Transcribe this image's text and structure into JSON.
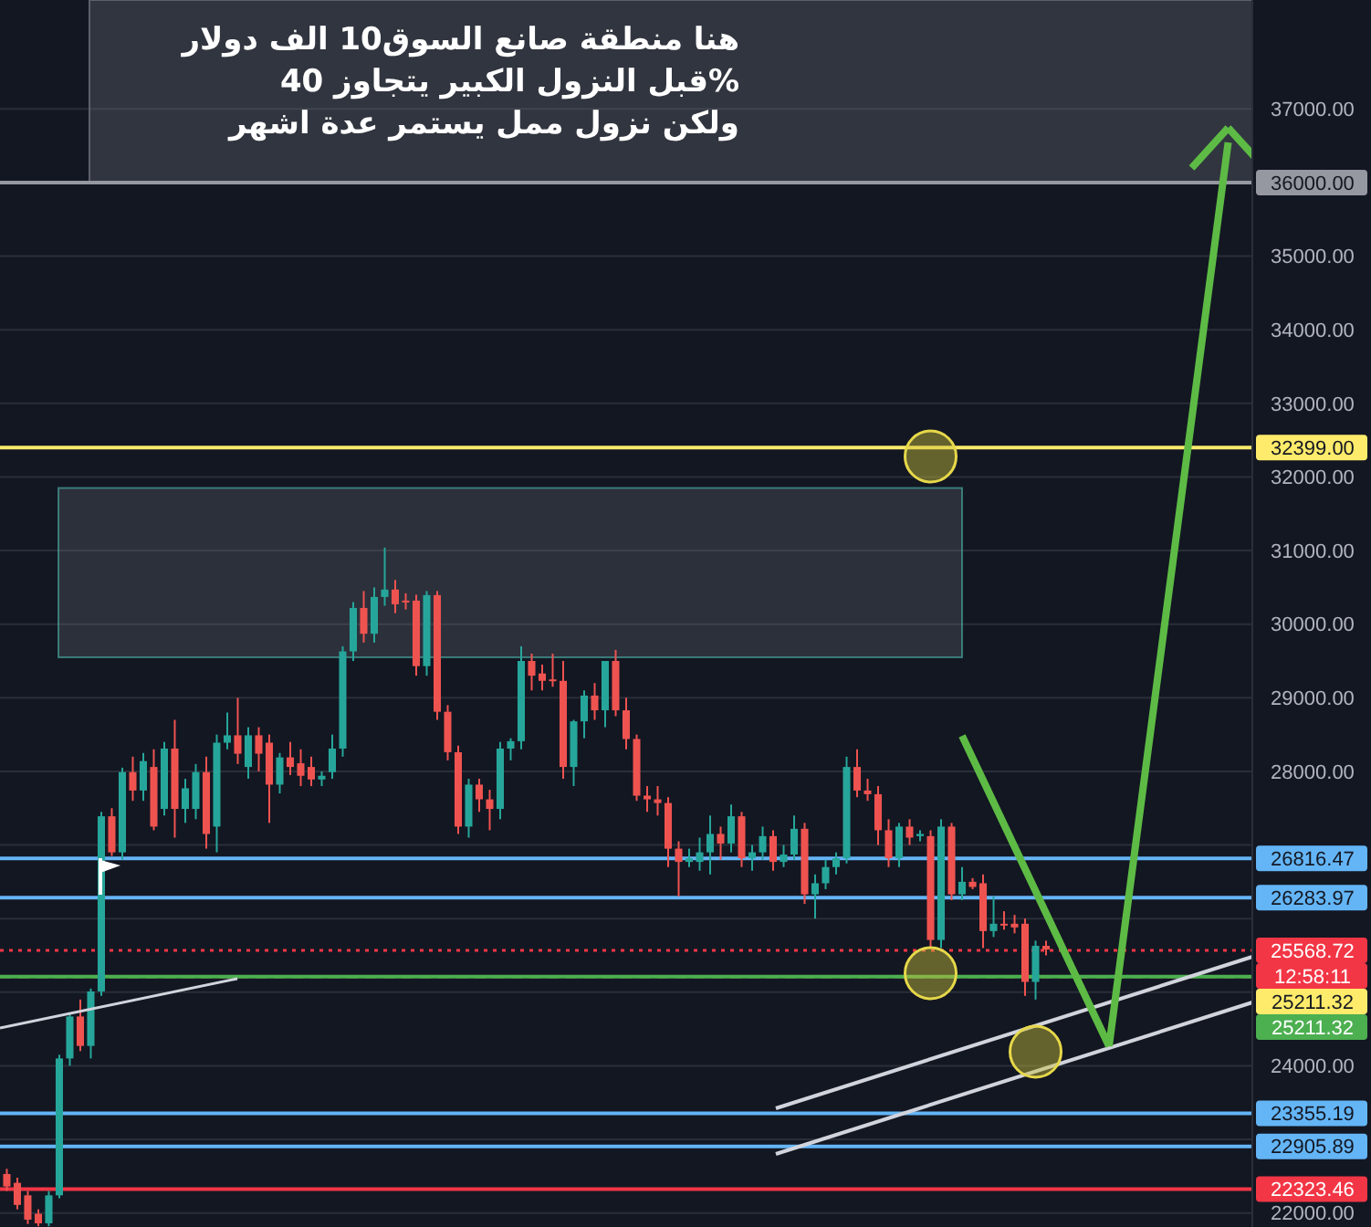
{
  "chart_data": {
    "type": "candlestick",
    "categories": [
      null,
      null,
      null,
      null,
      null,
      null,
      null,
      null,
      null,
      null,
      null,
      null,
      null,
      null,
      null,
      null,
      null,
      null,
      null,
      null,
      null,
      null,
      null,
      null,
      null,
      null,
      null,
      null,
      null,
      null,
      null,
      null,
      null,
      null,
      null,
      null,
      null,
      null,
      null,
      null,
      null,
      null,
      null,
      null,
      null,
      null,
      null,
      null,
      null,
      null,
      null,
      null,
      null,
      null,
      null,
      null,
      null,
      null,
      null,
      null,
      null,
      null,
      null,
      null,
      null,
      null,
      null,
      null,
      null,
      null,
      null,
      null,
      null,
      null,
      null,
      null,
      null,
      null,
      null,
      null,
      null,
      null,
      null,
      null,
      null,
      null,
      null,
      null,
      null,
      null,
      null,
      null,
      null,
      null,
      null,
      null,
      null,
      null,
      null,
      null,
      null,
      null,
      null,
      null,
      null,
      null,
      null,
      null,
      null,
      null,
      null,
      null,
      null,
      null,
      null,
      null,
      null,
      null,
      null
    ],
    "ohlc": [
      [
        22530,
        22600,
        22300,
        22360
      ],
      [
        22410,
        22480,
        22050,
        22110
      ],
      [
        22240,
        22300,
        21850,
        21910
      ],
      [
        21990,
        22050,
        21820,
        21860
      ],
      [
        21860,
        22300,
        21820,
        22240
      ],
      [
        22240,
        24150,
        22200,
        24100
      ],
      [
        24100,
        24700,
        24000,
        24670
      ],
      [
        24670,
        24900,
        24200,
        24270
      ],
      [
        24270,
        25050,
        24100,
        25010
      ],
      [
        25010,
        27450,
        24950,
        27390
      ],
      [
        27390,
        27500,
        26850,
        26900
      ],
      [
        26900,
        28050,
        26800,
        27990
      ],
      [
        27990,
        28200,
        27600,
        27740
      ],
      [
        27740,
        28250,
        27600,
        28140
      ],
      [
        28060,
        28300,
        27200,
        27250
      ],
      [
        27490,
        28400,
        27400,
        28310
      ],
      [
        28310,
        28700,
        27100,
        27490
      ],
      [
        27490,
        27900,
        27300,
        27770
      ],
      [
        27490,
        28100,
        27350,
        27990
      ],
      [
        27990,
        28200,
        26950,
        27150
      ],
      [
        27250,
        28500,
        26900,
        28390
      ],
      [
        28390,
        28800,
        28300,
        28490
      ],
      [
        28490,
        29000,
        28100,
        28240
      ],
      [
        28060,
        28600,
        27900,
        28490
      ],
      [
        28490,
        28600,
        28000,
        28240
      ],
      [
        28390,
        28500,
        27300,
        27820
      ],
      [
        27820,
        28250,
        27700,
        28190
      ],
      [
        28190,
        28400,
        27950,
        28060
      ],
      [
        28110,
        28300,
        27800,
        27940
      ],
      [
        28060,
        28200,
        27800,
        27890
      ],
      [
        27890,
        28000,
        27800,
        27940
      ],
      [
        27990,
        28500,
        27900,
        28310
      ],
      [
        28310,
        29700,
        28200,
        29630
      ],
      [
        29630,
        30300,
        29500,
        30220
      ],
      [
        30220,
        30450,
        29750,
        29870
      ],
      [
        29870,
        30500,
        29750,
        30370
      ],
      [
        30370,
        31040,
        30250,
        30470
      ],
      [
        30470,
        30600,
        30150,
        30270
      ],
      [
        30320,
        30420,
        30200,
        30300
      ],
      [
        30320,
        30400,
        29300,
        29430
      ],
      [
        29430,
        30450,
        29300,
        30395
      ],
      [
        30395,
        30450,
        28700,
        28810
      ],
      [
        28810,
        28900,
        28150,
        28260
      ],
      [
        28260,
        28350,
        27150,
        27250
      ],
      [
        27250,
        27900,
        27100,
        27820
      ],
      [
        27820,
        27900,
        27450,
        27620
      ],
      [
        27620,
        27750,
        27200,
        27490
      ],
      [
        27490,
        28400,
        27350,
        28310
      ],
      [
        28310,
        28450,
        28150,
        28410
      ],
      [
        28410,
        29700,
        28300,
        29500
      ],
      [
        29500,
        29600,
        29100,
        29300
      ],
      [
        29330,
        29450,
        29100,
        29230
      ],
      [
        29250,
        29600,
        29150,
        29230
      ],
      [
        29230,
        29500,
        27900,
        28060
      ],
      [
        28060,
        28700,
        27800,
        28680
      ],
      [
        28680,
        29100,
        28450,
        29030
      ],
      [
        29030,
        29200,
        28700,
        28830
      ],
      [
        28830,
        29500,
        28600,
        29500
      ],
      [
        29500,
        29650,
        28750,
        28830
      ],
      [
        28830,
        29000,
        28300,
        28440
      ],
      [
        28440,
        28500,
        27600,
        27670
      ],
      [
        27670,
        27800,
        27450,
        27620
      ],
      [
        27620,
        27800,
        27400,
        27570
      ],
      [
        27570,
        27650,
        26700,
        26950
      ],
      [
        26950,
        27050,
        26300,
        26770
      ],
      [
        26770,
        26950,
        26700,
        26820
      ],
      [
        26770,
        27100,
        26650,
        26900
      ],
      [
        26900,
        27400,
        26600,
        27150
      ],
      [
        27150,
        27250,
        26800,
        27020
      ],
      [
        27020,
        27550,
        26900,
        27390
      ],
      [
        27390,
        27450,
        26700,
        26820
      ],
      [
        26820,
        27000,
        26650,
        26900
      ],
      [
        26900,
        27250,
        26800,
        27120
      ],
      [
        27120,
        27200,
        26650,
        26770
      ],
      [
        26770,
        27000,
        26700,
        26870
      ],
      [
        26870,
        27400,
        26800,
        27220
      ],
      [
        27220,
        27300,
        26200,
        26330
      ],
      [
        26330,
        26600,
        26000,
        26480
      ],
      [
        26480,
        26800,
        26400,
        26700
      ],
      [
        26700,
        26900,
        26600,
        26820
      ],
      [
        26820,
        28200,
        26750,
        28060
      ],
      [
        28060,
        28300,
        27650,
        27740
      ],
      [
        27740,
        27900,
        27600,
        27690
      ],
      [
        27690,
        27800,
        27000,
        27200
      ],
      [
        27200,
        27350,
        26700,
        26820
      ],
      [
        26820,
        27300,
        26700,
        27250
      ],
      [
        27250,
        27350,
        27000,
        27100
      ],
      [
        27120,
        27200,
        27050,
        27150
      ],
      [
        27120,
        27200,
        25600,
        25710
      ],
      [
        25710,
        27350,
        25600,
        27250
      ],
      [
        27250,
        27300,
        26250,
        26330
      ],
      [
        26330,
        26700,
        26250,
        26500
      ],
      [
        26500,
        26550,
        26400,
        26430
      ],
      [
        26480,
        26600,
        25600,
        25830
      ],
      [
        25830,
        26300,
        25750,
        25930
      ],
      [
        25930,
        26100,
        25850,
        25910
      ],
      [
        25930,
        26050,
        25800,
        25880
      ],
      [
        25930,
        26000,
        24950,
        25140
      ],
      [
        25140,
        25700,
        24900,
        25630
      ],
      [
        25630,
        25700,
        25500,
        25580
      ],
      null,
      null,
      null,
      null,
      null,
      null,
      null,
      null,
      null,
      null,
      null,
      null,
      null,
      null,
      null,
      null,
      null,
      null,
      null
    ],
    "ylim": [
      21810,
      38480
    ],
    "yticks": [
      {
        "value": 22000,
        "label": "22000.00"
      },
      {
        "value": 23000,
        "label": null
      },
      {
        "value": 24000,
        "label": "24000.00"
      },
      {
        "value": 25000,
        "label": null
      },
      {
        "value": 26000,
        "label": null
      },
      {
        "value": 27000,
        "label": null
      },
      {
        "value": 28000,
        "label": "28000.00"
      },
      {
        "value": 29000,
        "label": "29000.00"
      },
      {
        "value": 30000,
        "label": "30000.00"
      },
      {
        "value": 31000,
        "label": "31000.00"
      },
      {
        "value": 32000,
        "label": "32000.00"
      },
      {
        "value": 33000,
        "label": "33000.00"
      },
      {
        "value": 34000,
        "label": "34000.00"
      },
      {
        "value": 35000,
        "label": "35000.00"
      },
      {
        "value": 36000,
        "label": null
      },
      {
        "value": 37000,
        "label": "37000.00"
      }
    ],
    "tick_labels": "y",
    "grid": "y",
    "ref_lines": [
      {
        "axis": "y",
        "value": 36000,
        "label": "36000.00",
        "color": "#9598a1"
      },
      {
        "axis": "y",
        "value": 32399,
        "label": "32399.00",
        "color": "#ffeb6b"
      },
      {
        "axis": "y",
        "value": 26816.47,
        "label": "26816.47",
        "color": "#64b5f6"
      },
      {
        "axis": "y",
        "value": 26283.97,
        "label": "26283.97",
        "color": "#64b5f6"
      },
      {
        "axis": "y",
        "value": 25568.72,
        "label": "25568.72",
        "color": "#f23645",
        "line_style": "dotted"
      },
      {
        "axis": "y",
        "value": 25211.32,
        "label": "25211.32",
        "color": "#ffeb6b",
        "line_style": "dashed"
      },
      {
        "axis": "y",
        "value": 25211.32,
        "label": "25211.32",
        "color": "#4caf50"
      },
      {
        "axis": "y",
        "value": 23355.19,
        "label": "23355.19",
        "color": "#64b5f6"
      },
      {
        "axis": "y",
        "value": 22905.89,
        "label": "22905.89",
        "color": "#64b5f6"
      },
      {
        "axis": "y",
        "value": 22323.46,
        "label": "22323.46",
        "color": "#f23645"
      }
    ],
    "bands": [
      {
        "axis": "y",
        "from": 29550,
        "to": 31850,
        "color": "#4db6ac"
      }
    ],
    "annotations": [
      "هنا منطقة صانع السوق10 الف دولار",
      "%قبل النزول الكبير يتجاوز 40",
      "ولكن نزول ممل يستمر عدة اشهر",
      "12:58:11"
    ]
  }
}
